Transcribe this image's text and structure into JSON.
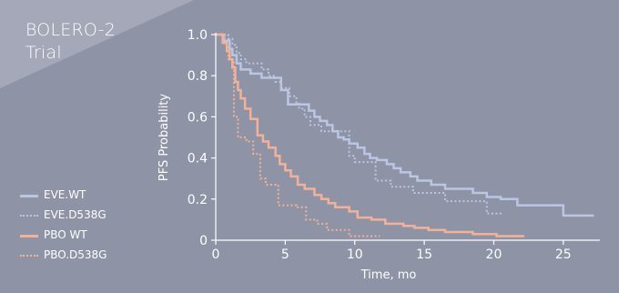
{
  "banner": {
    "line1": "BOLERO-2",
    "line2": "Trial"
  },
  "colors": {
    "background": "#8e93a6",
    "corner": "#a4a8b8",
    "eve": "#b9c7e4",
    "pbo": "#f3b19a",
    "axis": "#ffffff"
  },
  "chart_data": {
    "type": "line",
    "title": "",
    "xlabel": "Time, mo",
    "ylabel": "PFS Probability",
    "xlim": [
      0,
      27.5
    ],
    "ylim": [
      0,
      1.0
    ],
    "xticks": [
      0,
      5,
      10,
      15,
      20,
      25
    ],
    "yticks": [
      0,
      0.2,
      0.4,
      0.6,
      0.8,
      1.0
    ],
    "ytick_labels": [
      "0",
      "0.2",
      "0.4",
      "0.6",
      "0.8",
      "1.0"
    ],
    "grid": false,
    "legend_position": "left",
    "series": [
      {
        "name": "EVE.WT",
        "color": "#b9c7e4",
        "style": "solid",
        "x": [
          0,
          0.6,
          1.0,
          1.2,
          1.5,
          1.8,
          2.5,
          3.3,
          4.7,
          5.2,
          6.7,
          7.1,
          7.5,
          8.0,
          8.4,
          8.8,
          9.2,
          9.6,
          10.2,
          10.7,
          11.1,
          11.6,
          12.3,
          12.8,
          13.3,
          14.0,
          14.5,
          15.5,
          16.5,
          18.5,
          19.5,
          20.5,
          21.7,
          23.5,
          25.0,
          27.2
        ],
        "y": [
          1.0,
          0.97,
          0.93,
          0.9,
          0.86,
          0.83,
          0.81,
          0.79,
          0.73,
          0.66,
          0.63,
          0.6,
          0.58,
          0.56,
          0.53,
          0.5,
          0.49,
          0.47,
          0.45,
          0.42,
          0.4,
          0.39,
          0.37,
          0.35,
          0.33,
          0.31,
          0.29,
          0.27,
          0.25,
          0.23,
          0.21,
          0.2,
          0.17,
          0.17,
          0.12,
          0.12
        ]
      },
      {
        "name": "EVE.D538G",
        "color": "#b9c7e4",
        "style": "dotted",
        "x": [
          0,
          0.9,
          1.2,
          1.5,
          1.8,
          2.2,
          3.3,
          3.8,
          4.3,
          4.7,
          5.3,
          5.8,
          6.0,
          6.4,
          6.8,
          7.6,
          9.6,
          10.0,
          11.5,
          12.6,
          14.2,
          16.5,
          19.5,
          20.6
        ],
        "y": [
          1.0,
          0.98,
          0.95,
          0.91,
          0.88,
          0.86,
          0.83,
          0.8,
          0.77,
          0.74,
          0.7,
          0.67,
          0.64,
          0.6,
          0.56,
          0.53,
          0.41,
          0.38,
          0.29,
          0.26,
          0.23,
          0.19,
          0.13,
          0.13
        ]
      },
      {
        "name": "PBO WT",
        "color": "#f3b19a",
        "style": "solid",
        "x": [
          0,
          0.5,
          0.8,
          1.0,
          1.2,
          1.4,
          1.6,
          1.8,
          2.1,
          2.5,
          3.0,
          3.4,
          3.8,
          4.3,
          4.6,
          5.0,
          5.4,
          5.9,
          6.4,
          7.1,
          7.6,
          8.1,
          8.6,
          9.6,
          10.2,
          11.2,
          12.2,
          13.5,
          14.3,
          15.3,
          16.5,
          18.5,
          20.2,
          22.2
        ],
        "y": [
          1.0,
          0.96,
          0.92,
          0.88,
          0.84,
          0.77,
          0.73,
          0.69,
          0.64,
          0.59,
          0.51,
          0.48,
          0.45,
          0.41,
          0.37,
          0.34,
          0.31,
          0.27,
          0.25,
          0.22,
          0.2,
          0.18,
          0.16,
          0.14,
          0.11,
          0.1,
          0.08,
          0.07,
          0.06,
          0.05,
          0.04,
          0.03,
          0.02,
          0.02
        ]
      },
      {
        "name": "PBO.D538G",
        "color": "#f3b19a",
        "style": "dotted",
        "x": [
          0,
          0.6,
          0.9,
          1.3,
          1.6,
          2.2,
          2.7,
          3.2,
          3.6,
          4.5,
          5.8,
          6.5,
          7.3,
          8.0,
          9.6,
          11.8
        ],
        "y": [
          1.0,
          0.95,
          0.88,
          0.6,
          0.5,
          0.48,
          0.42,
          0.3,
          0.27,
          0.17,
          0.16,
          0.1,
          0.08,
          0.05,
          0.02,
          0.02
        ]
      }
    ]
  }
}
